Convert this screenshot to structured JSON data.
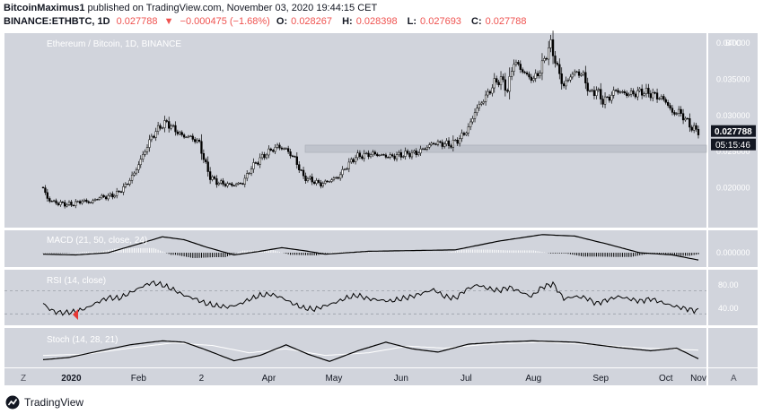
{
  "header": {
    "author": "BitcoinMaximus1",
    "published_text": "published on TradingView.com, November 03, 2020 19:44:15 CET",
    "symbol": "BINANCE:ETHBTC, 1D",
    "last": "0.027788",
    "direction_glyph": "▼",
    "change": "−0.000475 (−1.68%)",
    "o_label": "O:",
    "o_value": "0.028267",
    "h_label": "H:",
    "h_value": "0.028398",
    "l_label": "L:",
    "l_value": "0.027693",
    "c_label": "C:",
    "c_value": "0.027788"
  },
  "footer": {
    "brand": "TradingView"
  },
  "colors": {
    "pane_bg": "#d1d4dc",
    "candle": "#000000",
    "macd_line": "#000000",
    "stoch_k": "#000000",
    "stoch_d": "#ffffff",
    "arrow": "#e53935",
    "support_band": "#bfc3cc"
  },
  "chart_data": {
    "type": "candlestick",
    "title": "Ethereum / Bitcoin, 1D, BINANCE",
    "currency_label": "BTC",
    "price_ylim": [
      0.0155,
      0.0405
    ],
    "price_ticks": [
      "0.040000",
      "0.035000",
      "0.030000",
      "0.025000",
      "0.020000"
    ],
    "last_price_label": "0.027788",
    "countdown_label": "05:15:46",
    "support_band": [
      0.0249,
      0.0259
    ],
    "x_ticks": [
      "2020",
      "Feb",
      "2",
      "Apr",
      "May",
      "Jun",
      "Jul",
      "Aug",
      "Sep",
      "Oct",
      "Nov"
    ],
    "price_keypoints": [
      [
        0,
        0.02
      ],
      [
        2,
        0.0185
      ],
      [
        5,
        0.018
      ],
      [
        9,
        0.0178
      ],
      [
        13,
        0.0177
      ],
      [
        18,
        0.0182
      ],
      [
        22,
        0.018
      ],
      [
        26,
        0.0187
      ],
      [
        30,
        0.0188
      ],
      [
        34,
        0.0192
      ],
      [
        38,
        0.0203
      ],
      [
        42,
        0.022
      ],
      [
        46,
        0.0245
      ],
      [
        50,
        0.027
      ],
      [
        54,
        0.0285
      ],
      [
        57,
        0.029
      ],
      [
        60,
        0.0282
      ],
      [
        64,
        0.0272
      ],
      [
        68,
        0.027
      ],
      [
        72,
        0.0262
      ],
      [
        74,
        0.024
      ],
      [
        77,
        0.0215
      ],
      [
        80,
        0.0208
      ],
      [
        84,
        0.0205
      ],
      [
        88,
        0.0204
      ],
      [
        92,
        0.0207
      ],
      [
        96,
        0.0228
      ],
      [
        100,
        0.024
      ],
      [
        104,
        0.025
      ],
      [
        108,
        0.0257
      ],
      [
        112,
        0.0253
      ],
      [
        116,
        0.024
      ],
      [
        120,
        0.0215
      ],
      [
        124,
        0.021
      ],
      [
        128,
        0.0205
      ],
      [
        132,
        0.021
      ],
      [
        136,
        0.0215
      ],
      [
        140,
        0.023
      ],
      [
        144,
        0.0243
      ],
      [
        148,
        0.0245
      ],
      [
        152,
        0.0247
      ],
      [
        156,
        0.0245
      ],
      [
        160,
        0.0243
      ],
      [
        164,
        0.0245
      ],
      [
        168,
        0.0247
      ],
      [
        172,
        0.0248
      ],
      [
        176,
        0.0255
      ],
      [
        180,
        0.0262
      ],
      [
        184,
        0.0261
      ],
      [
        188,
        0.026
      ],
      [
        192,
        0.0268
      ],
      [
        196,
        0.0282
      ],
      [
        199,
        0.0305
      ],
      [
        202,
        0.0318
      ],
      [
        205,
        0.033
      ],
      [
        208,
        0.0345
      ],
      [
        211,
        0.035
      ],
      [
        214,
        0.0335
      ],
      [
        217,
        0.0375
      ],
      [
        220,
        0.0365
      ],
      [
        223,
        0.0355
      ],
      [
        226,
        0.035
      ],
      [
        229,
        0.0362
      ],
      [
        232,
        0.0385
      ],
      [
        234,
        0.0398
      ],
      [
        237,
        0.0365
      ],
      [
        240,
        0.034
      ],
      [
        243,
        0.0355
      ],
      [
        246,
        0.036
      ],
      [
        249,
        0.0355
      ],
      [
        252,
        0.033
      ],
      [
        255,
        0.0335
      ],
      [
        258,
        0.032
      ],
      [
        261,
        0.0325
      ],
      [
        264,
        0.0335
      ],
      [
        268,
        0.033
      ],
      [
        272,
        0.033
      ],
      [
        276,
        0.0333
      ],
      [
        280,
        0.033
      ],
      [
        284,
        0.0325
      ],
      [
        287,
        0.032
      ],
      [
        290,
        0.0303
      ],
      [
        293,
        0.0305
      ],
      [
        296,
        0.0295
      ],
      [
        299,
        0.0283
      ],
      [
        302,
        0.0278
      ]
    ],
    "macd": {
      "label": "MACD (21, 50, close, 24)",
      "axis_label": "0.000000",
      "ylim": [
        -0.0016,
        0.0026
      ],
      "line_keypoints": [
        [
          0,
          -0.0002
        ],
        [
          15,
          -0.0003
        ],
        [
          30,
          0.0
        ],
        [
          45,
          0.0013
        ],
        [
          55,
          0.0022
        ],
        [
          65,
          0.0018
        ],
        [
          75,
          0.0008
        ],
        [
          88,
          -0.0003
        ],
        [
          100,
          0.0002
        ],
        [
          110,
          0.0007
        ],
        [
          120,
          0.0003
        ],
        [
          130,
          -0.0002
        ],
        [
          150,
          0.0002
        ],
        [
          170,
          0.0003
        ],
        [
          190,
          0.0004
        ],
        [
          210,
          0.0016
        ],
        [
          230,
          0.0025
        ],
        [
          245,
          0.0023
        ],
        [
          260,
          0.0012
        ],
        [
          275,
          0.0
        ],
        [
          290,
          -0.0003
        ],
        [
          302,
          -0.001
        ]
      ]
    },
    "rsi": {
      "label": "RSI (14, close)",
      "ylim": [
        15,
        100
      ],
      "ticks": [
        "80.00",
        "40.00"
      ],
      "upper_band": 70,
      "lower_band": 30,
      "keypoints": [
        [
          0,
          48
        ],
        [
          3,
          38
        ],
        [
          6,
          33
        ],
        [
          10,
          32
        ],
        [
          15,
          34
        ],
        [
          20,
          40
        ],
        [
          25,
          50
        ],
        [
          30,
          58
        ],
        [
          35,
          57
        ],
        [
          40,
          66
        ],
        [
          45,
          76
        ],
        [
          50,
          84
        ],
        [
          55,
          80
        ],
        [
          60,
          72
        ],
        [
          65,
          62
        ],
        [
          70,
          56
        ],
        [
          75,
          48
        ],
        [
          80,
          44
        ],
        [
          85,
          42
        ],
        [
          90,
          46
        ],
        [
          95,
          55
        ],
        [
          100,
          62
        ],
        [
          105,
          64
        ],
        [
          110,
          58
        ],
        [
          115,
          48
        ],
        [
          120,
          40
        ],
        [
          125,
          38
        ],
        [
          130,
          44
        ],
        [
          135,
          50
        ],
        [
          140,
          58
        ],
        [
          145,
          62
        ],
        [
          150,
          56
        ],
        [
          155,
          54
        ],
        [
          160,
          52
        ],
        [
          165,
          56
        ],
        [
          170,
          60
        ],
        [
          175,
          66
        ],
        [
          180,
          72
        ],
        [
          185,
          60
        ],
        [
          190,
          57
        ],
        [
          195,
          72
        ],
        [
          200,
          80
        ],
        [
          205,
          74
        ],
        [
          210,
          70
        ],
        [
          215,
          76
        ],
        [
          220,
          68
        ],
        [
          225,
          60
        ],
        [
          230,
          76
        ],
        [
          235,
          82
        ],
        [
          240,
          56
        ],
        [
          245,
          60
        ],
        [
          250,
          58
        ],
        [
          255,
          48
        ],
        [
          260,
          54
        ],
        [
          265,
          60
        ],
        [
          270,
          56
        ],
        [
          275,
          52
        ],
        [
          280,
          56
        ],
        [
          285,
          50
        ],
        [
          290,
          44
        ],
        [
          295,
          40
        ],
        [
          300,
          36
        ],
        [
          302,
          36
        ]
      ],
      "signal_arrow_index": 12
    },
    "stoch": {
      "label": "Stoch (14, 28, 21)",
      "ylim": [
        0,
        100
      ],
      "k_keypoints": [
        [
          0,
          15
        ],
        [
          12,
          22
        ],
        [
          25,
          40
        ],
        [
          40,
          60
        ],
        [
          55,
          72
        ],
        [
          65,
          68
        ],
        [
          75,
          45
        ],
        [
          88,
          12
        ],
        [
          100,
          28
        ],
        [
          112,
          60
        ],
        [
          122,
          32
        ],
        [
          132,
          10
        ],
        [
          145,
          42
        ],
        [
          158,
          68
        ],
        [
          170,
          48
        ],
        [
          182,
          38
        ],
        [
          196,
          62
        ],
        [
          210,
          68
        ],
        [
          225,
          72
        ],
        [
          245,
          68
        ],
        [
          265,
          52
        ],
        [
          280,
          42
        ],
        [
          292,
          50
        ],
        [
          302,
          18
        ]
      ],
      "d_keypoints": [
        [
          0,
          28
        ],
        [
          20,
          32
        ],
        [
          40,
          50
        ],
        [
          60,
          66
        ],
        [
          78,
          58
        ],
        [
          95,
          36
        ],
        [
          112,
          48
        ],
        [
          130,
          28
        ],
        [
          150,
          36
        ],
        [
          168,
          56
        ],
        [
          185,
          50
        ],
        [
          205,
          62
        ],
        [
          230,
          68
        ],
        [
          255,
          60
        ],
        [
          278,
          50
        ],
        [
          302,
          44
        ]
      ]
    }
  }
}
